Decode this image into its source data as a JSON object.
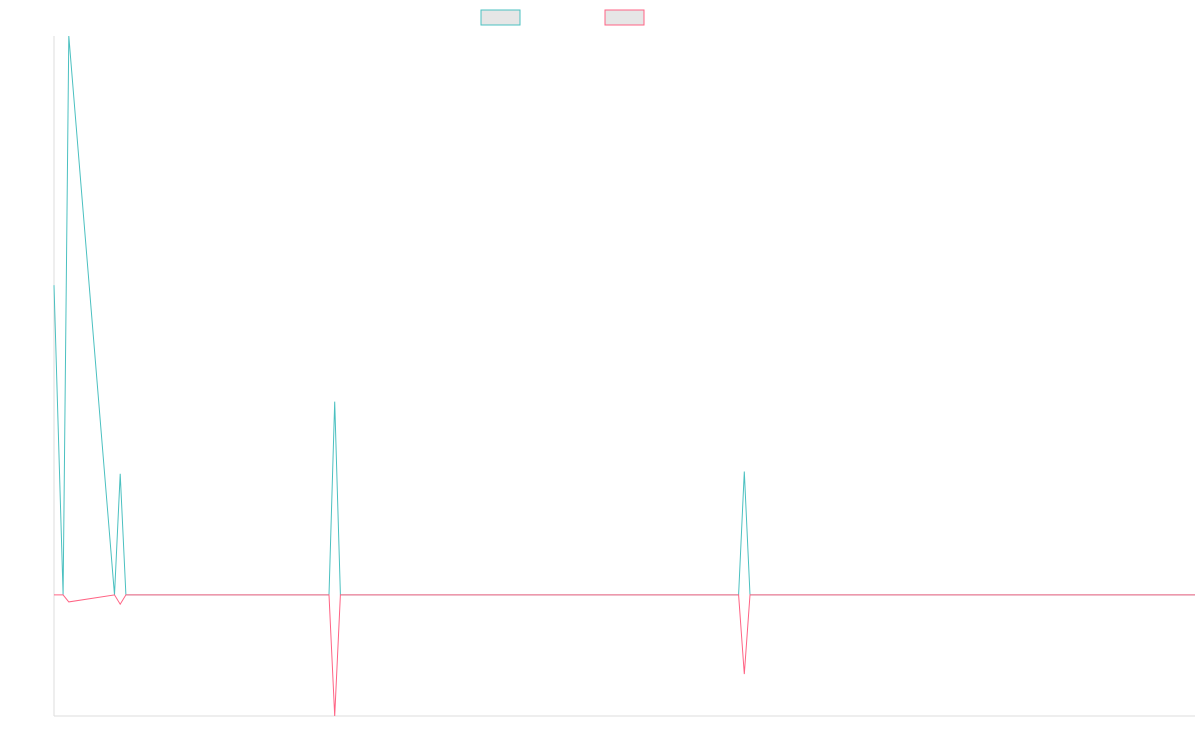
{
  "chart_data": {
    "type": "line",
    "title": "",
    "xlabel": "",
    "ylabel": "",
    "grid": false,
    "legend": "top-center",
    "xlim": [
      0,
      1000
    ],
    "ylim": [
      -0.52,
      2.4
    ],
    "x": [
      0,
      8,
      13,
      53,
      58,
      63,
      241,
      246,
      251,
      600,
      605,
      610,
      1000
    ],
    "series": [
      {
        "color": "#4bc0c0",
        "fill": "#e6e6e6",
        "values": [
          1.33,
          0,
          2.4,
          0,
          0.52,
          0,
          0,
          0.83,
          0,
          0,
          0.53,
          0,
          0
        ]
      },
      {
        "color": "#ff6384",
        "fill": "#e6e6e6",
        "values": [
          0,
          0,
          -0.03,
          0,
          -0.04,
          0,
          0,
          -0.52,
          0,
          0,
          -0.34,
          0,
          0
        ]
      }
    ]
  }
}
